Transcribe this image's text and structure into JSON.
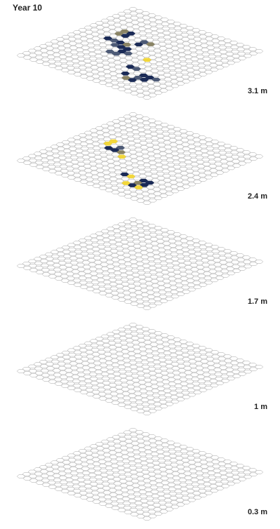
{
  "title": "Year 10",
  "colors": {
    "background": "#ffffff",
    "cell_stroke": "#9a9a9a",
    "cell_fill": "#ffffff",
    "text": "#222222",
    "levels": {
      "navy": "#1a2a56",
      "slate": "#4d5a76",
      "olive": "#8a8465",
      "yellow": "#f2d73b"
    }
  },
  "layers": [
    {
      "label": "3.1 m",
      "cells": [
        {
          "q": 2,
          "r": 1,
          "level": "yellow"
        },
        {
          "q": -2,
          "r": -3,
          "level": "slate"
        },
        {
          "q": -1,
          "r": -3,
          "level": "olive"
        },
        {
          "q": -2,
          "r": -2,
          "level": "navy"
        },
        {
          "q": -6,
          "r": -4,
          "level": "olive"
        },
        {
          "q": -5,
          "r": -4,
          "level": "navy"
        },
        {
          "q": -6,
          "r": -3,
          "level": "olive"
        },
        {
          "q": -5,
          "r": -3,
          "level": "navy"
        },
        {
          "q": -6,
          "r": -1,
          "level": "navy"
        },
        {
          "q": -5,
          "r": -1,
          "level": "slate"
        },
        {
          "q": -4,
          "r": -1,
          "level": "navy"
        },
        {
          "q": -3,
          "r": -1,
          "level": "olive"
        },
        {
          "q": -4,
          "r": 0,
          "level": "slate"
        },
        {
          "q": -3,
          "r": 0,
          "level": "navy"
        },
        {
          "q": -2,
          "r": 0,
          "level": "navy"
        },
        {
          "q": -2,
          "r": 1,
          "level": "navy"
        },
        {
          "q": -1,
          "r": 1,
          "level": "slate"
        },
        {
          "q": -3,
          "r": 2,
          "level": "slate"
        },
        {
          "q": -2,
          "r": 2,
          "level": "slate"
        },
        {
          "q": 5,
          "r": 5,
          "level": "navy"
        },
        {
          "q": 6,
          "r": 5,
          "level": "navy"
        },
        {
          "q": 5,
          "r": 6,
          "level": "slate"
        },
        {
          "q": 6,
          "r": 6,
          "level": "navy"
        },
        {
          "q": 5,
          "r": 7,
          "level": "navy"
        },
        {
          "q": 4,
          "r": 7,
          "level": "olive"
        },
        {
          "q": 7,
          "r": 5,
          "level": "slate"
        },
        {
          "q": 3,
          "r": 6,
          "level": "navy"
        },
        {
          "q": 2,
          "r": 4,
          "level": "navy"
        },
        {
          "q": 3,
          "r": 4,
          "level": "slate"
        }
      ]
    },
    {
      "label": "2.4 m",
      "cells": [
        {
          "q": -6,
          "r": -2,
          "level": "yellow"
        },
        {
          "q": -6,
          "r": -1,
          "level": "yellow"
        },
        {
          "q": -5,
          "r": 0,
          "level": "navy"
        },
        {
          "q": -4,
          "r": 0,
          "level": "navy"
        },
        {
          "q": -4,
          "r": -1,
          "level": "slate"
        },
        {
          "q": -3,
          "r": 0,
          "level": "olive"
        },
        {
          "q": -2,
          "r": 1,
          "level": "yellow"
        },
        {
          "q": 5,
          "r": 5,
          "level": "navy"
        },
        {
          "q": 6,
          "r": 5,
          "level": "navy"
        },
        {
          "q": 5,
          "r": 6,
          "level": "olive"
        },
        {
          "q": 6,
          "r": 6,
          "level": "navy"
        },
        {
          "q": 5,
          "r": 7,
          "level": "navy"
        },
        {
          "q": 6,
          "r": 7,
          "level": "yellow"
        },
        {
          "q": 4,
          "r": 7,
          "level": "yellow"
        },
        {
          "q": 2,
          "r": 5,
          "level": "navy"
        },
        {
          "q": 3,
          "r": 5,
          "level": "yellow"
        }
      ]
    },
    {
      "label": "1.7 m",
      "cells": []
    },
    {
      "label": "1 m",
      "cells": []
    },
    {
      "label": "0.3 m",
      "cells": []
    }
  ]
}
